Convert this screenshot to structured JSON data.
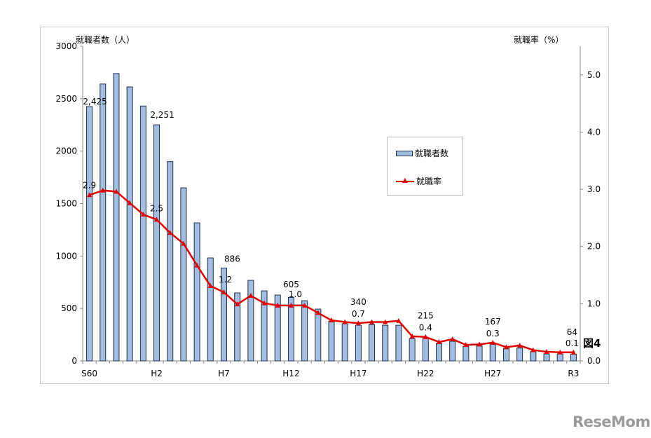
{
  "chart_data": {
    "type": "bar+line",
    "left_axis_label": "就職者数（人）",
    "right_axis_label": "就職率（%）",
    "y_left_lim": [
      0,
      3000
    ],
    "y_left_ticks": [
      "0",
      "500",
      "1000",
      "1500",
      "2000",
      "2500",
      "3000"
    ],
    "y_right_lim": [
      0,
      5.5
    ],
    "y_right_ticks": [
      "0.0",
      "1.0",
      "2.0",
      "3.0",
      "4.0",
      "5.0"
    ],
    "categories": [
      "S60",
      "",
      "",
      "",
      "",
      "H2",
      "",
      "",
      "",
      "",
      "H7",
      "",
      "",
      "",
      "",
      "H12",
      "",
      "",
      "",
      "",
      "H17",
      "",
      "",
      "",
      "",
      "H22",
      "",
      "",
      "",
      "",
      "H27",
      "",
      "",
      "",
      "",
      "",
      "R3"
    ],
    "series": [
      {
        "name": "就職者数",
        "type": "bar",
        "color": "#a3bde0",
        "values": [
          2425,
          2640,
          2740,
          2612,
          2430,
          2251,
          1900,
          1650,
          1316,
          982,
          886,
          648,
          768,
          668,
          628,
          605,
          574,
          494,
          380,
          354,
          340,
          347,
          340,
          340,
          213,
          215,
          167,
          187,
          140,
          147,
          167,
          120,
          122,
          87,
          67,
          67,
          64
        ]
      },
      {
        "name": "就職率",
        "type": "line",
        "color": "#e00000",
        "values": [
          2.9,
          2.98,
          2.96,
          2.76,
          2.56,
          2.47,
          2.24,
          2.05,
          1.67,
          1.31,
          1.2,
          0.99,
          1.14,
          1.01,
          0.97,
          0.97,
          0.97,
          0.84,
          0.71,
          0.68,
          0.66,
          0.68,
          0.68,
          0.7,
          0.43,
          0.42,
          0.33,
          0.38,
          0.28,
          0.29,
          0.32,
          0.24,
          0.27,
          0.19,
          0.16,
          0.15,
          0.15
        ]
      }
    ],
    "bar_data_labels": [
      {
        "index": 0,
        "text": "2,425"
      },
      {
        "index": 5,
        "text": "2,251"
      },
      {
        "index": 10,
        "text": "886"
      },
      {
        "index": 15,
        "text": "605"
      },
      {
        "index": 20,
        "text": "340"
      },
      {
        "index": 25,
        "text": "215"
      },
      {
        "index": 30,
        "text": "167"
      },
      {
        "index": 36,
        "text": "64"
      }
    ],
    "line_data_labels": [
      {
        "index": 0,
        "text": "2.9"
      },
      {
        "index": 5,
        "text": "2.5"
      },
      {
        "index": 10,
        "text": "1.2"
      },
      {
        "index": 15,
        "text": "1.0"
      },
      {
        "index": 20,
        "text": "0.7"
      },
      {
        "index": 25,
        "text": "0.4"
      },
      {
        "index": 30,
        "text": "0.3"
      },
      {
        "index": 36,
        "text": "0.1"
      }
    ],
    "legend_position": "center-right",
    "grid": false
  },
  "figure_label": "図4",
  "watermark": "ReseMom"
}
